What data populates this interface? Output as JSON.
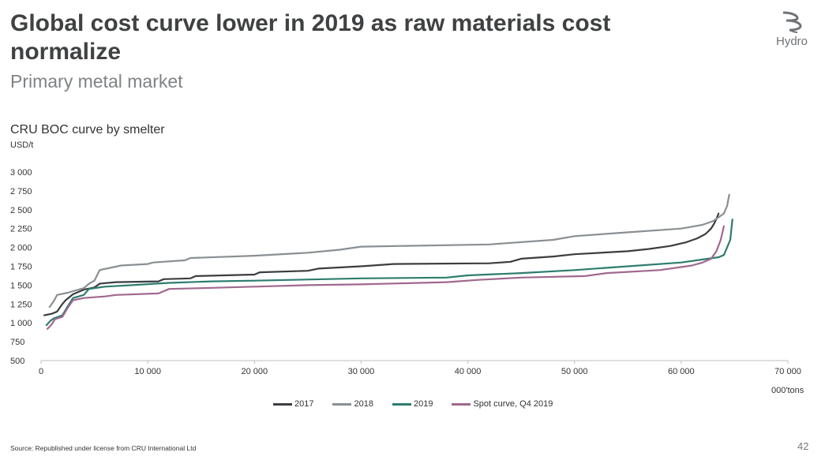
{
  "header": {
    "title": "Global cost curve lower in 2019 as raw materials cost normalize",
    "subtitle": "Primary metal market",
    "logo_text": "Hydro"
  },
  "footer": {
    "source": "Source: Republished under license from CRU International Ltd",
    "page_number": "42"
  },
  "chart_data": {
    "type": "line",
    "title": "CRU BOC curve by smelter",
    "ylabel": "USD/t",
    "xlabel": "000'tons",
    "xlim": [
      0,
      70000
    ],
    "ylim": [
      500,
      3000
    ],
    "xticks": [
      0,
      10000,
      20000,
      30000,
      40000,
      50000,
      60000,
      70000
    ],
    "xtick_labels": [
      "0",
      "10 000",
      "20 000",
      "30 000",
      "40 000",
      "50 000",
      "60 000",
      "70 000"
    ],
    "yticks": [
      500,
      750,
      1000,
      1250,
      1500,
      1750,
      2000,
      2250,
      2500,
      2750,
      3000
    ],
    "ytick_labels": [
      "500",
      "750",
      "1 000",
      "1 250",
      "1 500",
      "1 750",
      "2 000",
      "2 250",
      "2 500",
      "2 750",
      "3 000"
    ],
    "grid": false,
    "legend_position": "bottom",
    "series": [
      {
        "name": "2017",
        "color": "#3b3d40",
        "x": [
          300,
          1000,
          1500,
          2000,
          2300,
          3000,
          4000,
          5000,
          5500,
          7000,
          11000,
          11500,
          14000,
          14500,
          20000,
          20500,
          25000,
          26000,
          30000,
          32000,
          33000,
          42000,
          44000,
          45000,
          48000,
          50000,
          55000,
          57000,
          59000,
          60500,
          61500,
          62300,
          62800,
          63100,
          63300,
          63500
        ],
        "y": [
          1100,
          1120,
          1150,
          1250,
          1300,
          1380,
          1440,
          1470,
          1520,
          1540,
          1550,
          1580,
          1590,
          1620,
          1640,
          1670,
          1690,
          1720,
          1750,
          1770,
          1780,
          1790,
          1810,
          1850,
          1880,
          1910,
          1950,
          1980,
          2020,
          2070,
          2120,
          2180,
          2250,
          2320,
          2380,
          2450
        ]
      },
      {
        "name": "2018",
        "color": "#8a8f92",
        "x": [
          800,
          1200,
          1500,
          2500,
          3000,
          4000,
          4500,
          5000,
          5500,
          7500,
          10000,
          10500,
          13500,
          14000,
          20000,
          25000,
          28000,
          30000,
          42000,
          48000,
          50000,
          54000,
          60000,
          62000,
          63000,
          63500,
          64000,
          64300,
          64500
        ],
        "y": [
          1210,
          1290,
          1370,
          1400,
          1420,
          1460,
          1520,
          1560,
          1700,
          1760,
          1780,
          1800,
          1830,
          1860,
          1890,
          1930,
          1970,
          2010,
          2040,
          2100,
          2150,
          2190,
          2250,
          2300,
          2350,
          2400,
          2450,
          2550,
          2700
        ]
      },
      {
        "name": "2019",
        "color": "#2d7d6e",
        "x": [
          500,
          900,
          1200,
          2000,
          2500,
          3000,
          4000,
          4500,
          6000,
          8500,
          12000,
          16000,
          20000,
          30000,
          38000,
          40000,
          45000,
          50000,
          55000,
          60000,
          62000,
          63500,
          64000,
          64300,
          64600,
          64800
        ],
        "y": [
          970,
          1030,
          1060,
          1100,
          1220,
          1330,
          1370,
          1450,
          1480,
          1500,
          1530,
          1550,
          1560,
          1590,
          1600,
          1630,
          1660,
          1700,
          1750,
          1800,
          1840,
          1870,
          1900,
          2000,
          2100,
          2370
        ]
      },
      {
        "name": "Spot curve, Q4 2019",
        "color": "#a0688f",
        "x": [
          600,
          1000,
          1300,
          2000,
          2500,
          3000,
          4000,
          6000,
          7000,
          11000,
          12000,
          15000,
          20000,
          25000,
          30000,
          38000,
          41000,
          45000,
          51000,
          53000,
          58000,
          61000,
          62000,
          62800,
          63300,
          63700,
          64000
        ],
        "y": [
          920,
          980,
          1050,
          1080,
          1200,
          1300,
          1330,
          1350,
          1370,
          1390,
          1450,
          1460,
          1480,
          1500,
          1510,
          1540,
          1570,
          1600,
          1620,
          1660,
          1700,
          1760,
          1800,
          1850,
          1950,
          2100,
          2280
        ]
      }
    ]
  }
}
